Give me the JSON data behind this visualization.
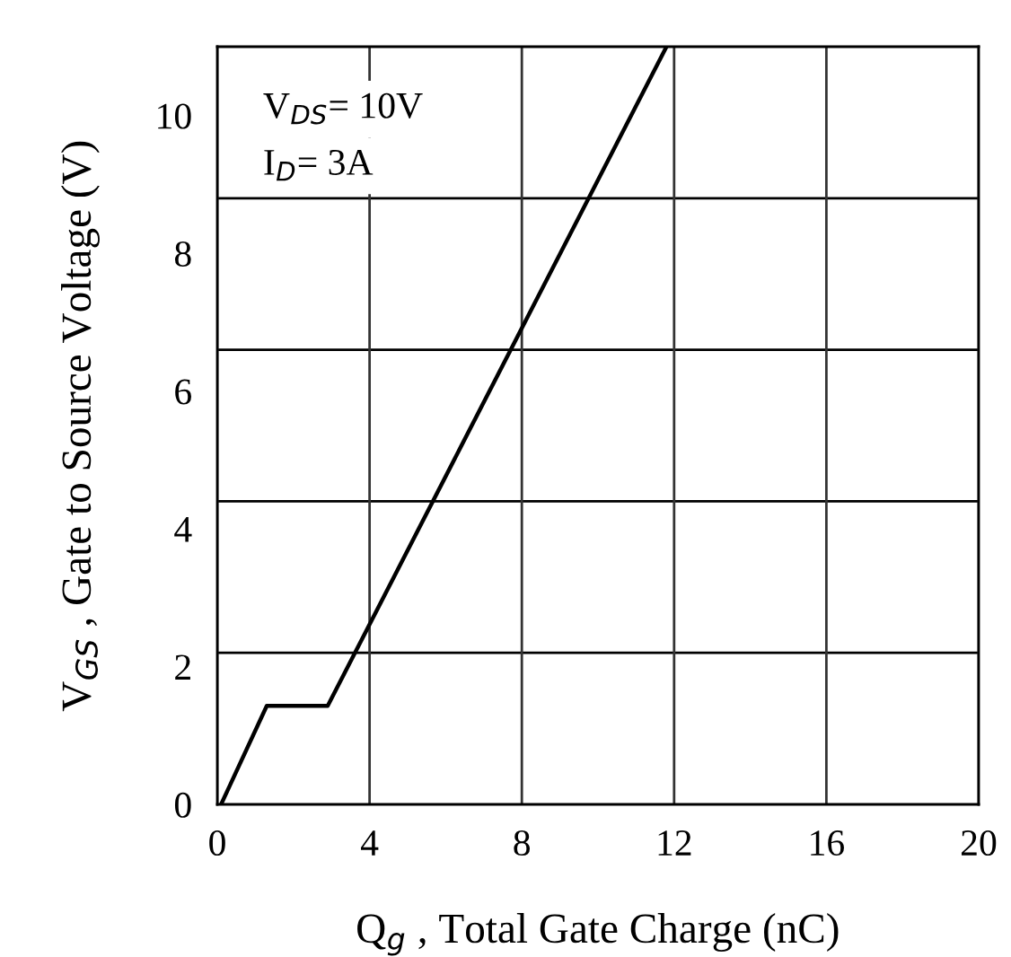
{
  "chart_data": {
    "type": "line",
    "xlabel": "Q$_{g}$ , Total Gate Charge (nC)",
    "ylabel": "V$_{GS}$ , Gate to Source Voltage (V)",
    "x": [
      0.1,
      1.3,
      2.9,
      11.8
    ],
    "series": [
      {
        "color": "#000000",
        "values": [
          0,
          1.43,
          1.43,
          11.0
        ]
      }
    ],
    "xlim": [
      0,
      20
    ],
    "xticks": [
      0,
      4,
      8,
      12,
      16,
      20
    ],
    "ylim": [
      0,
      11.0
    ],
    "yticks": [
      0,
      2,
      4,
      6,
      8,
      10
    ],
    "grid": "x",
    "marker": "none",
    "line_style": "solid",
    "ref_lines": [
      {
        "axis": "y",
        "value": 2.2,
        "color": "#000000"
      },
      {
        "axis": "y",
        "value": 4.4,
        "color": "#000000"
      },
      {
        "axis": "y",
        "value": 6.6,
        "color": "#000000"
      },
      {
        "axis": "y",
        "value": 8.8,
        "color": "#000000"
      }
    ],
    "annotations": [
      "V$_{DS}$= 10V",
      "I$_{D}$= 3A"
    ]
  }
}
